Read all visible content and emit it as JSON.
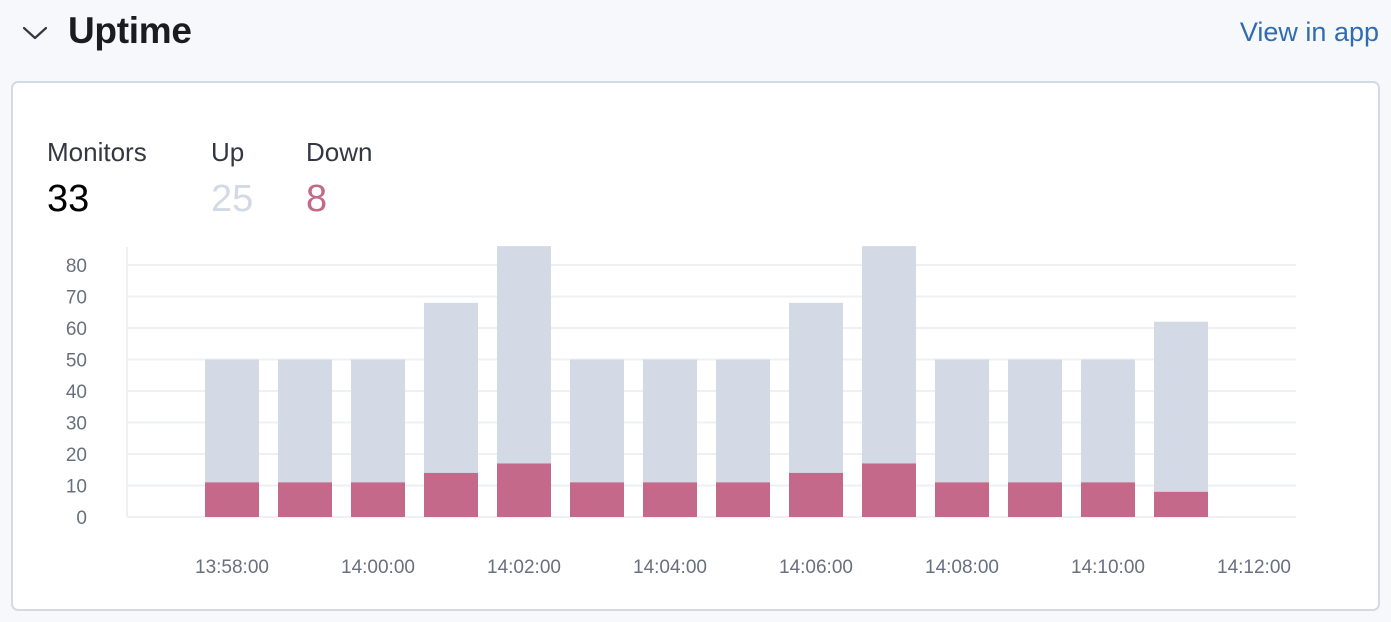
{
  "header": {
    "title": "Uptime",
    "collapse_icon": "chevron-down-icon",
    "view_link": "View in app"
  },
  "stats": {
    "monitors": {
      "label": "Monitors",
      "value": "33"
    },
    "up": {
      "label": "Up",
      "value": "25"
    },
    "down": {
      "label": "Down",
      "value": "8"
    }
  },
  "colors": {
    "up": "#d3dae6",
    "down": "#c4698a",
    "link": "#2f6db2",
    "grid": "#eef0f4",
    "axis_text": "#69707d"
  },
  "chart_data": {
    "type": "bar",
    "stacked": true,
    "title": "",
    "xlabel": "",
    "ylabel": "",
    "ylim": [
      0,
      86
    ],
    "yticks": [
      0,
      10,
      20,
      30,
      40,
      50,
      60,
      70,
      80
    ],
    "grid": true,
    "legend": "none",
    "categories": [
      "13:58:00",
      "13:59:00",
      "14:00:00",
      "14:01:00",
      "14:02:00",
      "14:03:00",
      "14:04:00",
      "14:05:00",
      "14:06:00",
      "14:07:00",
      "14:08:00",
      "14:09:00",
      "14:10:00",
      "14:11:00"
    ],
    "xtick_labels": [
      "13:58:00",
      "14:00:00",
      "14:02:00",
      "14:04:00",
      "14:06:00",
      "14:08:00",
      "14:10:00",
      "14:12:00"
    ],
    "series": [
      {
        "name": "Down",
        "color": "#c4698a",
        "values": [
          11,
          11,
          11,
          14,
          17,
          11,
          11,
          11,
          14,
          17,
          11,
          11,
          11,
          8
        ]
      },
      {
        "name": "Up",
        "color": "#d3dae6",
        "values": [
          39,
          39,
          39,
          54,
          69,
          39,
          39,
          39,
          54,
          69,
          39,
          39,
          39,
          54
        ]
      }
    ]
  }
}
